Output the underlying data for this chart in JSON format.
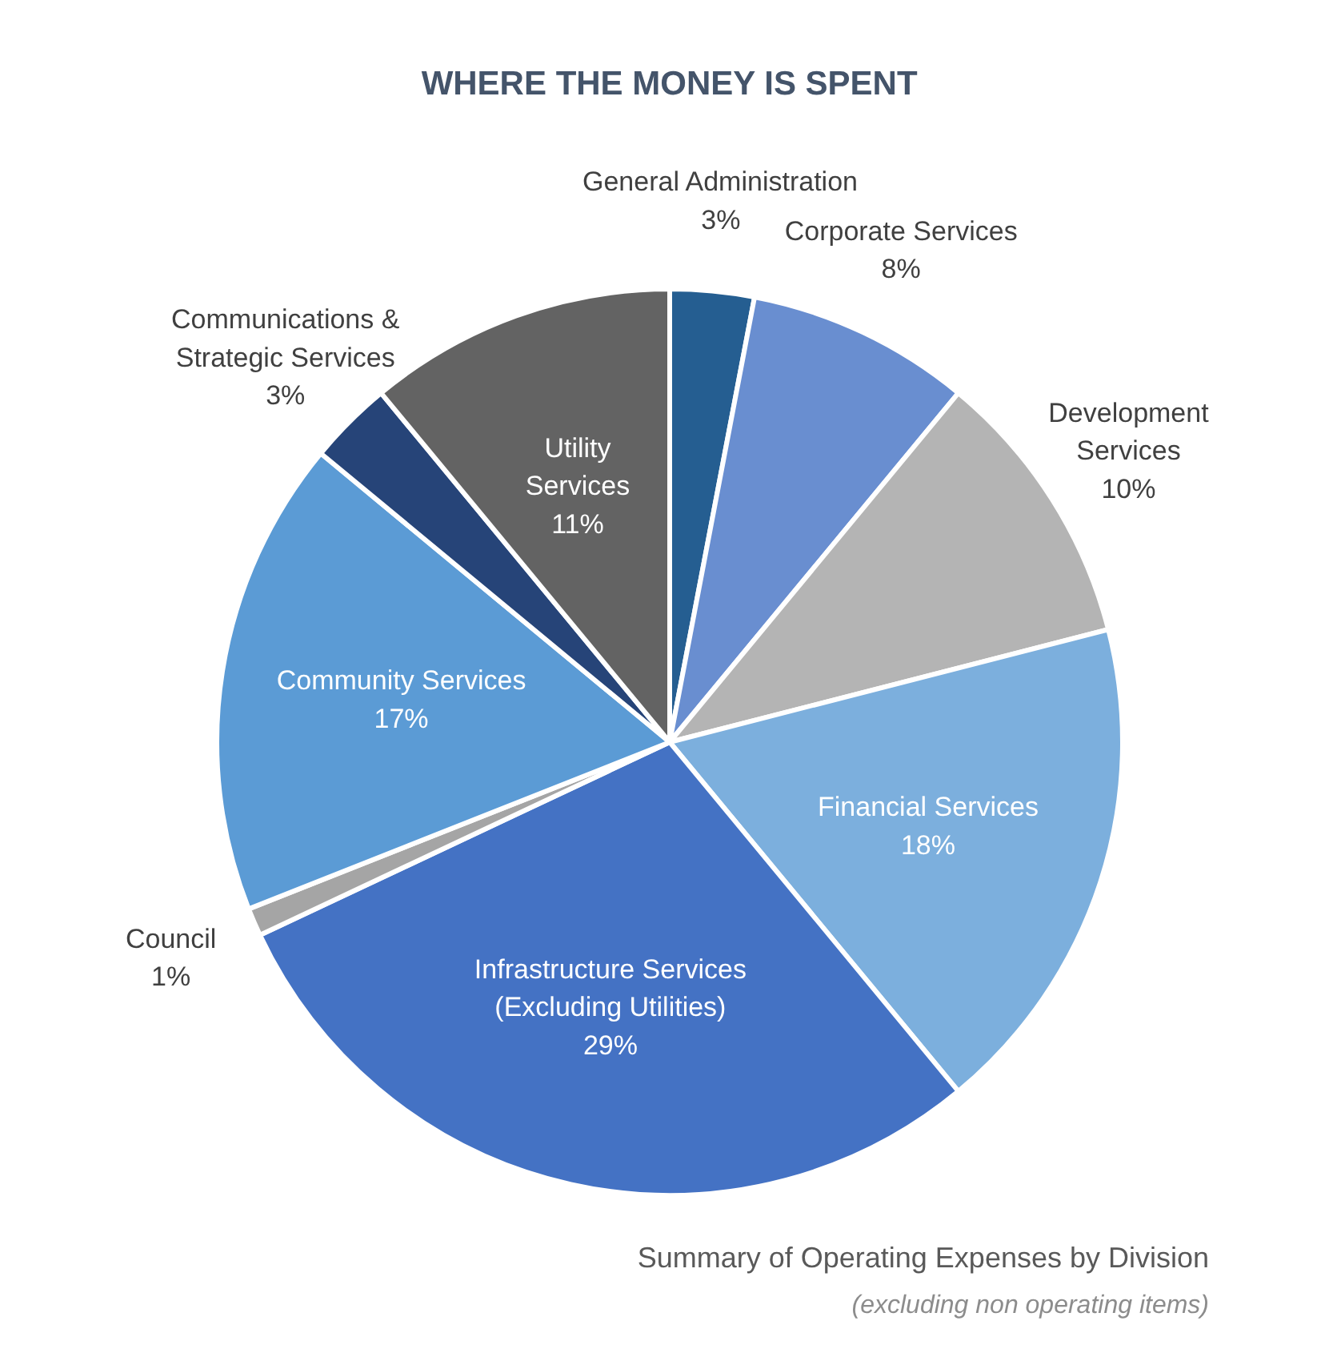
{
  "chart_data": {
    "type": "pie",
    "title": "WHERE THE MONEY IS SPENT",
    "categories": [
      "General Administration",
      "Corporate Services",
      "Development\nServices",
      "Financial Services",
      "Infrastructure Services\n(Excluding Utilities)",
      "Council",
      "Community Services",
      "Communications &\nStrategic Services",
      "Utility\nServices"
    ],
    "values": [
      3,
      8,
      10,
      18,
      29,
      1,
      17,
      3,
      11
    ],
    "value_labels": [
      "3%",
      "8%",
      "10%",
      "18%",
      "29%",
      "1%",
      "17%",
      "3%",
      "11%"
    ],
    "colors": [
      "#255e91",
      "#698ed0",
      "#b4b4b4",
      "#7cafdd",
      "#4472c4",
      "#a5a5a5",
      "#5b9bd5",
      "#264478",
      "#636363"
    ],
    "annotations": [
      "Summary of Operating Expenses by Division",
      "(excluding non operating items)"
    ]
  }
}
